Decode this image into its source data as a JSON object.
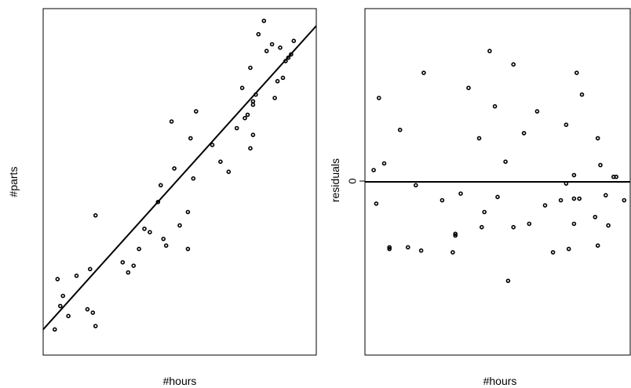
{
  "chart_data": [
    {
      "type": "scatter",
      "xlabel": "#hours",
      "ylabel": "#parts",
      "xlim": [
        0,
        100
      ],
      "ylim": [
        0,
        100
      ],
      "grid": false,
      "fit_line": {
        "x": [
          0,
          100
        ],
        "y": [
          6.0,
          96.5
        ]
      },
      "points": [
        [
          4,
          6
        ],
        [
          5,
          21
        ],
        [
          6,
          13
        ],
        [
          7,
          16
        ],
        [
          9,
          10
        ],
        [
          12,
          22
        ],
        [
          16,
          12
        ],
        [
          17,
          24
        ],
        [
          18,
          11
        ],
        [
          19,
          7
        ],
        [
          19,
          40
        ],
        [
          29,
          26
        ],
        [
          31,
          23
        ],
        [
          33,
          25
        ],
        [
          35,
          30
        ],
        [
          37,
          36
        ],
        [
          39,
          35
        ],
        [
          42,
          44
        ],
        [
          43,
          49
        ],
        [
          45,
          31
        ],
        [
          44,
          33
        ],
        [
          47,
          68
        ],
        [
          48,
          54
        ],
        [
          50,
          37
        ],
        [
          53,
          30
        ],
        [
          53,
          41
        ],
        [
          55,
          51
        ],
        [
          54,
          63
        ],
        [
          56,
          71
        ],
        [
          62,
          61
        ],
        [
          65,
          56
        ],
        [
          68,
          53
        ],
        [
          71,
          66
        ],
        [
          73,
          78
        ],
        [
          74,
          69
        ],
        [
          75,
          70
        ],
        [
          76,
          60
        ],
        [
          77,
          74
        ],
        [
          77,
          73
        ],
        [
          78,
          76
        ],
        [
          77,
          64
        ],
        [
          76,
          84
        ],
        [
          79,
          94
        ],
        [
          81,
          98
        ],
        [
          82,
          89
        ],
        [
          84,
          91
        ],
        [
          85,
          75
        ],
        [
          86,
          80
        ],
        [
          87,
          90
        ],
        [
          88,
          81
        ],
        [
          89,
          86
        ],
        [
          90,
          87
        ],
        [
          91,
          88
        ],
        [
          92,
          92
        ]
      ]
    },
    {
      "type": "scatter",
      "xlabel": "#hours",
      "ylabel": "residuals",
      "xlim": [
        0,
        100
      ],
      "ylim": [
        -100,
        100
      ],
      "yticks": [
        {
          "value": 0,
          "label": "0"
        }
      ],
      "grid": false,
      "reference_line": 0,
      "points": [
        [
          3,
          7
        ],
        [
          4,
          -13
        ],
        [
          5,
          50
        ],
        [
          7,
          11
        ],
        [
          9,
          -40
        ],
        [
          9,
          -39
        ],
        [
          13,
          31
        ],
        [
          16,
          -39
        ],
        [
          19,
          -2
        ],
        [
          21,
          -41
        ],
        [
          22,
          65
        ],
        [
          29,
          -11
        ],
        [
          33,
          -42
        ],
        [
          34,
          -31
        ],
        [
          34,
          -32
        ],
        [
          36,
          -7
        ],
        [
          39,
          56
        ],
        [
          43,
          26
        ],
        [
          44,
          -27
        ],
        [
          45,
          -18
        ],
        [
          47,
          78
        ],
        [
          49,
          45
        ],
        [
          50,
          -9
        ],
        [
          53,
          12
        ],
        [
          54,
          -59
        ],
        [
          56,
          70
        ],
        [
          56,
          -27
        ],
        [
          60,
          29
        ],
        [
          62,
          -25
        ],
        [
          65,
          42
        ],
        [
          68,
          -14
        ],
        [
          71,
          -42
        ],
        [
          74,
          -11
        ],
        [
          76,
          34
        ],
        [
          76,
          -1
        ],
        [
          77,
          -40
        ],
        [
          79,
          -25
        ],
        [
          79,
          -10
        ],
        [
          79,
          4
        ],
        [
          80,
          65
        ],
        [
          81,
          -10
        ],
        [
          82,
          52
        ],
        [
          87,
          -21
        ],
        [
          88,
          26
        ],
        [
          88,
          -38
        ],
        [
          89,
          10
        ],
        [
          91,
          -8
        ],
        [
          92,
          -26
        ],
        [
          94,
          3
        ],
        [
          95,
          3
        ],
        [
          98,
          -11
        ]
      ]
    }
  ]
}
